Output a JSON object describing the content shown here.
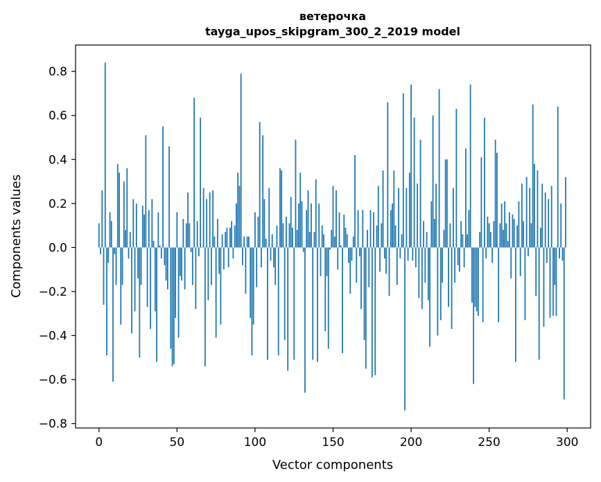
{
  "chart_data": {
    "type": "bar",
    "title": "ветерочка",
    "subtitle": "tayga_upos_skipgram_300_2_2019 model",
    "xlabel": "Vector components",
    "ylabel": "Components values",
    "xlim": [
      -15,
      315
    ],
    "ylim": [
      -0.82,
      0.92
    ],
    "xticks": [
      0,
      50,
      100,
      150,
      200,
      250,
      300
    ],
    "xtick_labels": [
      "0",
      "50",
      "100",
      "150",
      "200",
      "250",
      "300"
    ],
    "yticks": [
      -0.8,
      -0.6,
      -0.4,
      -0.2,
      0.0,
      0.2,
      0.4,
      0.6,
      0.8
    ],
    "ytick_labels": [
      "−0.8",
      "−0.6",
      "−0.4",
      "−0.2",
      "0.0",
      "0.2",
      "0.4",
      "0.6",
      "0.8"
    ],
    "bar_color": "#1f77b4",
    "grid": false,
    "values": [
      0.11,
      -0.03,
      0.26,
      -0.26,
      0.84,
      -0.49,
      -0.07,
      0.16,
      0.12,
      -0.61,
      -0.03,
      -0.17,
      0.38,
      0.34,
      -0.35,
      -0.17,
      0.3,
      0.08,
      0.36,
      -0.05,
      0.07,
      -0.39,
      0.22,
      -0.29,
      0.2,
      -0.14,
      -0.5,
      -0.17,
      0.19,
      0.15,
      0.51,
      -0.27,
      0.17,
      -0.37,
      0.22,
      0.03,
      -0.29,
      -0.52,
      0.16,
      0.01,
      -0.05,
      0.55,
      -0.08,
      -0.15,
      -0.19,
      0.46,
      -0.46,
      -0.54,
      -0.53,
      -0.32,
      0.16,
      -0.41,
      -0.13,
      -0.15,
      0.13,
      -0.19,
      0.11,
      0.25,
      0.11,
      -0.02,
      -0.17,
      0.68,
      -0.28,
      0.12,
      -0.04,
      0.59,
      0.0,
      0.27,
      -0.54,
      0.22,
      -0.24,
      0.25,
      -0.17,
      0.26,
      0.05,
      -0.41,
      0.13,
      -0.12,
      -0.35,
      0.06,
      -0.1,
      0.07,
      0.09,
      -0.09,
      0.09,
      0.12,
      -0.05,
      0.1,
      0.2,
      0.34,
      0.28,
      0.79,
      -0.08,
      0.05,
      -0.21,
      0.05,
      0.05,
      -0.32,
      -0.49,
      -0.35,
      0.16,
      -0.18,
      0.14,
      0.57,
      -0.09,
      0.51,
      0.22,
      0.04,
      -0.51,
      0.27,
      -0.06,
      0.06,
      -0.09,
      -0.17,
      0.1,
      -0.49,
      0.36,
      0.35,
      0.11,
      -0.42,
      0.14,
      -0.56,
      0.11,
      0.23,
      0.09,
      -0.51,
      0.49,
      0.08,
      0.2,
      0.34,
      0.21,
      -0.02,
      -0.66,
      0.17,
      0.26,
      0.07,
      0.2,
      -0.51,
      0.07,
      0.31,
      -0.52,
      0.2,
      -0.13,
      0.1,
      0.06,
      -0.38,
      -0.13,
      -0.46,
      -0.01,
      0.08,
      0.28,
      0.05,
      0.26,
      -0.1,
      0.16,
      0.01,
      -0.48,
      0.15,
      0.09,
      0.06,
      -0.07,
      -0.21,
      -0.06,
      0.05,
      0.42,
      -0.16,
      0.17,
      -0.04,
      -0.28,
      0.17,
      -0.42,
      -0.55,
      0.08,
      -0.18,
      0.17,
      -0.59,
      0.16,
      -0.58,
      0.1,
      0.28,
      -0.11,
      0.11,
      0.35,
      -0.05,
      -0.12,
      0.66,
      -0.22,
      0.17,
      0.2,
      0.35,
      0.1,
      -0.17,
      0.27,
      -0.05,
      0.06,
      0.7,
      -0.74,
      0.27,
      -0.06,
      0.34,
      0.74,
      -0.06,
      0.59,
      -0.09,
      0.29,
      -0.23,
      0.49,
      -0.28,
      0.12,
      -0.16,
      0.07,
      -0.24,
      -0.45,
      0.21,
      0.6,
      0.13,
      0.29,
      -0.4,
      0.72,
      -0.33,
      -0.16,
      0.08,
      0.4,
      0.4,
      -0.27,
      0.11,
      -0.37,
      0.27,
      -0.16,
      0.63,
      -0.08,
      -0.11,
      0.12,
      0.06,
      -0.09,
      0.45,
      0.06,
      0.17,
      0.74,
      -0.25,
      -0.62,
      -0.27,
      -0.29,
      -0.31,
      0.07,
      0.41,
      -0.34,
      0.59,
      -0.05,
      0.14,
      0.11,
      0.07,
      -0.07,
      0.12,
      0.49,
      0.43,
      -0.34,
      0.11,
      0.2,
      0.08,
      0.21,
      0.11,
      0.03,
      0.16,
      -0.14,
      0.15,
      0.13,
      -0.52,
      0.1,
      0.21,
      -0.13,
      0.29,
      0.12,
      -0.33,
      0.32,
      -0.04,
      0.27,
      0.11,
      0.65,
      0.38,
      -0.22,
      0.35,
      -0.51,
      0.09,
      0.29,
      -0.36,
      0.25,
      -0.07,
      0.22,
      -0.32,
      0.28,
      -0.31,
      -0.17,
      -0.31,
      0.64,
      -0.05,
      0.2,
      -0.06,
      -0.69,
      0.32
    ]
  }
}
